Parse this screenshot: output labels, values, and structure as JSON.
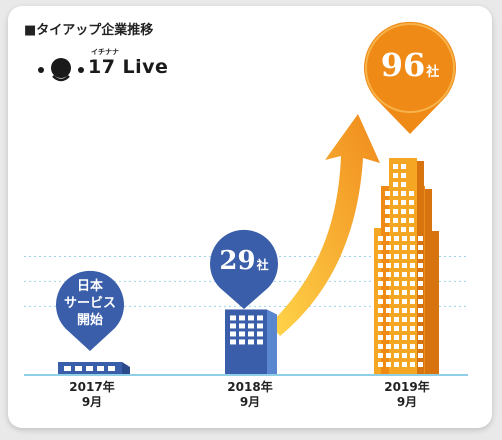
{
  "title": "■タイアップ企業推移",
  "logo": {
    "ruby": "イチナナ",
    "text": "17 Live"
  },
  "colors": {
    "blue": "#3a5ea9",
    "orange": "#ef8a17",
    "orange_light": "#f5a623",
    "baseline": "#8fd0e6",
    "grid": "#9fd4e6",
    "arrow_start": "#ffd54a",
    "arrow_end": "#f08a1c"
  },
  "chart_data": {
    "type": "bar",
    "title": "タイアップ企業推移",
    "categories": [
      "2017年9月",
      "2018年9月",
      "2019年9月"
    ],
    "tick_labels": [
      {
        "year": "2017年",
        "month": "9月"
      },
      {
        "year": "2018年",
        "month": "9月"
      },
      {
        "year": "2019年",
        "month": "9月"
      }
    ],
    "series": [
      {
        "values": [
          0,
          29,
          96
        ]
      }
    ],
    "data_labels": [
      null,
      {
        "number": "29",
        "unit": "社"
      },
      {
        "number": "96",
        "unit": "社"
      }
    ],
    "annotations": [
      {
        "category": "2017年9月",
        "lines": [
          "日本",
          "サービス",
          "開始"
        ]
      }
    ],
    "ylim": [
      0,
      96
    ],
    "grid": true,
    "legend": "none"
  }
}
